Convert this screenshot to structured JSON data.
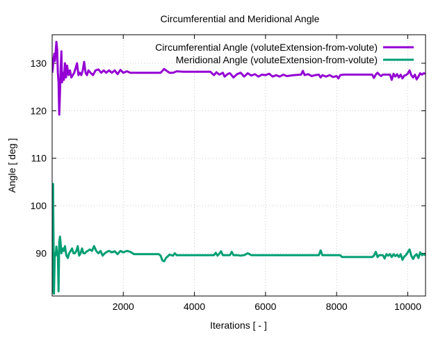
{
  "chart_data": {
    "type": "line",
    "title": "Circumferential and Meridional Angle",
    "xlabel": "Iterations [ - ]",
    "ylabel": "Angle [ deg ]",
    "xlim": [
      0,
      10500
    ],
    "ylim": [
      81,
      136
    ],
    "xticks": [
      2000,
      4000,
      6000,
      8000,
      10000
    ],
    "yticks": [
      90,
      100,
      110,
      120,
      130
    ],
    "grid": true,
    "legend_position": "top-right",
    "series": [
      {
        "name": "Circumferential Angle (voluteExtension-from-volute)",
        "color": "#9400d3",
        "points": [
          [
            0,
            128
          ],
          [
            20,
            129
          ],
          [
            40,
            131
          ],
          [
            60,
            132
          ],
          [
            80,
            130.5
          ],
          [
            100,
            132.5
          ],
          [
            120,
            134.5
          ],
          [
            140,
            133
          ],
          [
            160,
            128
          ],
          [
            180,
            126
          ],
          [
            200,
            119.2
          ],
          [
            220,
            124
          ],
          [
            240,
            129
          ],
          [
            260,
            132.5
          ],
          [
            280,
            126
          ],
          [
            300,
            128
          ],
          [
            330,
            126.5
          ],
          [
            360,
            130
          ],
          [
            390,
            127
          ],
          [
            420,
            129.5
          ],
          [
            460,
            127.5
          ],
          [
            500,
            128.5
          ],
          [
            540,
            127
          ],
          [
            580,
            127.5
          ],
          [
            620,
            128
          ],
          [
            660,
            129
          ],
          [
            700,
            130
          ],
          [
            740,
            127.5
          ],
          [
            780,
            128
          ],
          [
            820,
            127.5
          ],
          [
            860,
            128.5
          ],
          [
            900,
            130.3
          ],
          [
            940,
            128
          ],
          [
            980,
            127.5
          ],
          [
            1020,
            128.5
          ],
          [
            1080,
            128
          ],
          [
            1150,
            127.5
          ],
          [
            1220,
            128.5
          ],
          [
            1300,
            128.7
          ],
          [
            1380,
            128
          ],
          [
            1450,
            128.5
          ],
          [
            1520,
            128
          ],
          [
            1600,
            128.5
          ],
          [
            1680,
            128
          ],
          [
            1760,
            128.5
          ],
          [
            1840,
            127.7
          ],
          [
            1920,
            128.6
          ],
          [
            2000,
            128
          ],
          [
            2100,
            128.3
          ],
          [
            2200,
            128
          ],
          [
            2300,
            128
          ],
          [
            2500,
            128
          ],
          [
            2700,
            128
          ],
          [
            2900,
            128
          ],
          [
            3050,
            128
          ],
          [
            3150,
            128.8
          ],
          [
            3200,
            128.5
          ],
          [
            3300,
            128
          ],
          [
            3400,
            128
          ],
          [
            3500,
            128.3
          ],
          [
            3700,
            128.2
          ],
          [
            3900,
            128.2
          ],
          [
            4100,
            128.2
          ],
          [
            4300,
            128.2
          ],
          [
            4450,
            128.2
          ],
          [
            4550,
            127.5
          ],
          [
            4620,
            128.1
          ],
          [
            4700,
            127.6
          ],
          [
            4800,
            128
          ],
          [
            4850,
            127.2
          ],
          [
            4950,
            127.8
          ],
          [
            5000,
            127.9
          ],
          [
            5100,
            127
          ],
          [
            5200,
            127.7
          ],
          [
            5300,
            128
          ],
          [
            5400,
            127.2
          ],
          [
            5500,
            127.9
          ],
          [
            5600,
            127.4
          ],
          [
            5700,
            127.7
          ],
          [
            5800,
            127.2
          ],
          [
            5900,
            127.6
          ],
          [
            6000,
            127.5
          ],
          [
            6100,
            127.8
          ],
          [
            6200,
            127.2
          ],
          [
            6300,
            127.5
          ],
          [
            6400,
            127.2
          ],
          [
            6500,
            127.6
          ],
          [
            6600,
            127.3
          ],
          [
            6800,
            127.5
          ],
          [
            7000,
            127.6
          ],
          [
            7050,
            128.4
          ],
          [
            7100,
            127.5
          ],
          [
            7200,
            127.7
          ],
          [
            7300,
            127.3
          ],
          [
            7400,
            127.5
          ],
          [
            7500,
            127.6
          ],
          [
            7550,
            127
          ],
          [
            7600,
            127.5
          ],
          [
            7700,
            127.2
          ],
          [
            7800,
            127.5
          ],
          [
            7900,
            127.1
          ],
          [
            8000,
            127.3
          ],
          [
            8050,
            126.8
          ],
          [
            8100,
            127.5
          ],
          [
            8200,
            127.6
          ],
          [
            8300,
            127.6
          ],
          [
            8500,
            127.6
          ],
          [
            8700,
            127.6
          ],
          [
            8900,
            127.6
          ],
          [
            9000,
            127.6
          ],
          [
            9050,
            126.9
          ],
          [
            9100,
            127.6
          ],
          [
            9150,
            128
          ],
          [
            9200,
            127.6
          ],
          [
            9250,
            127.3
          ],
          [
            9300,
            127.6
          ],
          [
            9400,
            127.6
          ],
          [
            9500,
            127.6
          ],
          [
            9550,
            126.5
          ],
          [
            9600,
            127.8
          ],
          [
            9650,
            127.2
          ],
          [
            9700,
            127.7
          ],
          [
            9750,
            127
          ],
          [
            9800,
            127.6
          ],
          [
            9850,
            126.8
          ],
          [
            9900,
            127.4
          ],
          [
            9950,
            127.5
          ],
          [
            10000,
            127.8
          ],
          [
            10050,
            128.5
          ],
          [
            10100,
            127.5
          ],
          [
            10150,
            127
          ],
          [
            10200,
            127.6
          ],
          [
            10250,
            126.6
          ],
          [
            10300,
            127.2
          ],
          [
            10350,
            127.9
          ],
          [
            10400,
            127.6
          ],
          [
            10450,
            127.9
          ],
          [
            10500,
            127.8
          ]
        ]
      },
      {
        "name": "Meridional Angle (voluteExtension-from-volute)",
        "color": "#009e73",
        "points": [
          [
            0,
            81.5
          ],
          [
            25,
            104.6
          ],
          [
            50,
            81.5
          ],
          [
            75,
            90
          ],
          [
            100,
            89.5
          ],
          [
            120,
            91.4
          ],
          [
            140,
            90
          ],
          [
            160,
            90.2
          ],
          [
            180,
            82
          ],
          [
            200,
            92.4
          ],
          [
            220,
            93.5
          ],
          [
            240,
            92
          ],
          [
            260,
            90
          ],
          [
            280,
            90.5
          ],
          [
            300,
            91
          ],
          [
            330,
            90.5
          ],
          [
            360,
            91.5
          ],
          [
            400,
            89.5
          ],
          [
            440,
            89
          ],
          [
            480,
            90
          ],
          [
            520,
            90.5
          ],
          [
            560,
            91
          ],
          [
            600,
            90
          ],
          [
            640,
            90
          ],
          [
            680,
            90.5
          ],
          [
            720,
            91.5
          ],
          [
            760,
            89.5
          ],
          [
            800,
            90
          ],
          [
            840,
            91
          ],
          [
            880,
            90
          ],
          [
            920,
            90
          ],
          [
            960,
            90.3
          ],
          [
            1000,
            90.5
          ],
          [
            1060,
            90.8
          ],
          [
            1120,
            90.5
          ],
          [
            1180,
            91.5
          ],
          [
            1240,
            90.5
          ],
          [
            1300,
            90
          ],
          [
            1360,
            90.5
          ],
          [
            1420,
            89.5
          ],
          [
            1480,
            90
          ],
          [
            1540,
            90.3
          ],
          [
            1600,
            90.5
          ],
          [
            1680,
            90.2
          ],
          [
            1760,
            90.4
          ],
          [
            1840,
            89.8
          ],
          [
            1920,
            90.5
          ],
          [
            2000,
            90.2
          ],
          [
            2100,
            90.5
          ],
          [
            2200,
            90.3
          ],
          [
            2300,
            89.8
          ],
          [
            2500,
            89.8
          ],
          [
            2700,
            89.8
          ],
          [
            2900,
            89.8
          ],
          [
            3000,
            89.8
          ],
          [
            3050,
            89.5
          ],
          [
            3100,
            88.5
          ],
          [
            3150,
            88.3
          ],
          [
            3200,
            89
          ],
          [
            3300,
            89.7
          ],
          [
            3400,
            89.5
          ],
          [
            3450,
            90
          ],
          [
            3500,
            89.6
          ],
          [
            3600,
            89.6
          ],
          [
            3800,
            89.6
          ],
          [
            4000,
            89.6
          ],
          [
            4200,
            89.6
          ],
          [
            4400,
            89.6
          ],
          [
            4550,
            89.6
          ],
          [
            4600,
            90.1
          ],
          [
            4650,
            89.5
          ],
          [
            4700,
            89.9
          ],
          [
            4750,
            90.4
          ],
          [
            4800,
            89.6
          ],
          [
            4900,
            89.6
          ],
          [
            5000,
            89.6
          ],
          [
            5050,
            90.3
          ],
          [
            5100,
            89.6
          ],
          [
            5200,
            89.6
          ],
          [
            5300,
            89.5
          ],
          [
            5400,
            89.6
          ],
          [
            5500,
            90
          ],
          [
            5600,
            89.6
          ],
          [
            5700,
            89.6
          ],
          [
            5800,
            89.6
          ],
          [
            5900,
            89.6
          ],
          [
            6000,
            89.6
          ],
          [
            6100,
            89.6
          ],
          [
            6200,
            89.6
          ],
          [
            6300,
            89.6
          ],
          [
            6400,
            89.6
          ],
          [
            6500,
            89.6
          ],
          [
            6600,
            89.6
          ],
          [
            6700,
            89.6
          ],
          [
            6800,
            89.6
          ],
          [
            6900,
            89.6
          ],
          [
            7000,
            89.6
          ],
          [
            7100,
            89.6
          ],
          [
            7200,
            89.6
          ],
          [
            7300,
            89.6
          ],
          [
            7400,
            89.6
          ],
          [
            7500,
            89.6
          ],
          [
            7550,
            90.6
          ],
          [
            7600,
            89.6
          ],
          [
            7700,
            89.6
          ],
          [
            7800,
            89.6
          ],
          [
            7900,
            89.6
          ],
          [
            8000,
            89.6
          ],
          [
            8100,
            89.6
          ],
          [
            8150,
            89.2
          ],
          [
            8300,
            89.2
          ],
          [
            8500,
            89.2
          ],
          [
            8700,
            89.2
          ],
          [
            8900,
            89.2
          ],
          [
            9000,
            89.2
          ],
          [
            9050,
            89.5
          ],
          [
            9100,
            90.3
          ],
          [
            9150,
            89.2
          ],
          [
            9200,
            89.6
          ],
          [
            9300,
            89.6
          ],
          [
            9350,
            88.9
          ],
          [
            9400,
            89.8
          ],
          [
            9450,
            89.5
          ],
          [
            9500,
            89.8
          ],
          [
            9550,
            89.2
          ],
          [
            9600,
            89.8
          ],
          [
            9650,
            89.4
          ],
          [
            9700,
            89.7
          ],
          [
            9750,
            89.2
          ],
          [
            9800,
            89.8
          ],
          [
            9850,
            88.6
          ],
          [
            9900,
            89.3
          ],
          [
            9950,
            89.6
          ],
          [
            10000,
            90.2
          ],
          [
            10050,
            90.8
          ],
          [
            10100,
            89.5
          ],
          [
            10150,
            88.8
          ],
          [
            10200,
            89.5
          ],
          [
            10250,
            89.8
          ],
          [
            10300,
            89
          ],
          [
            10350,
            90.2
          ],
          [
            10400,
            89.6
          ],
          [
            10450,
            89.8
          ],
          [
            10500,
            89.6
          ]
        ]
      }
    ]
  }
}
